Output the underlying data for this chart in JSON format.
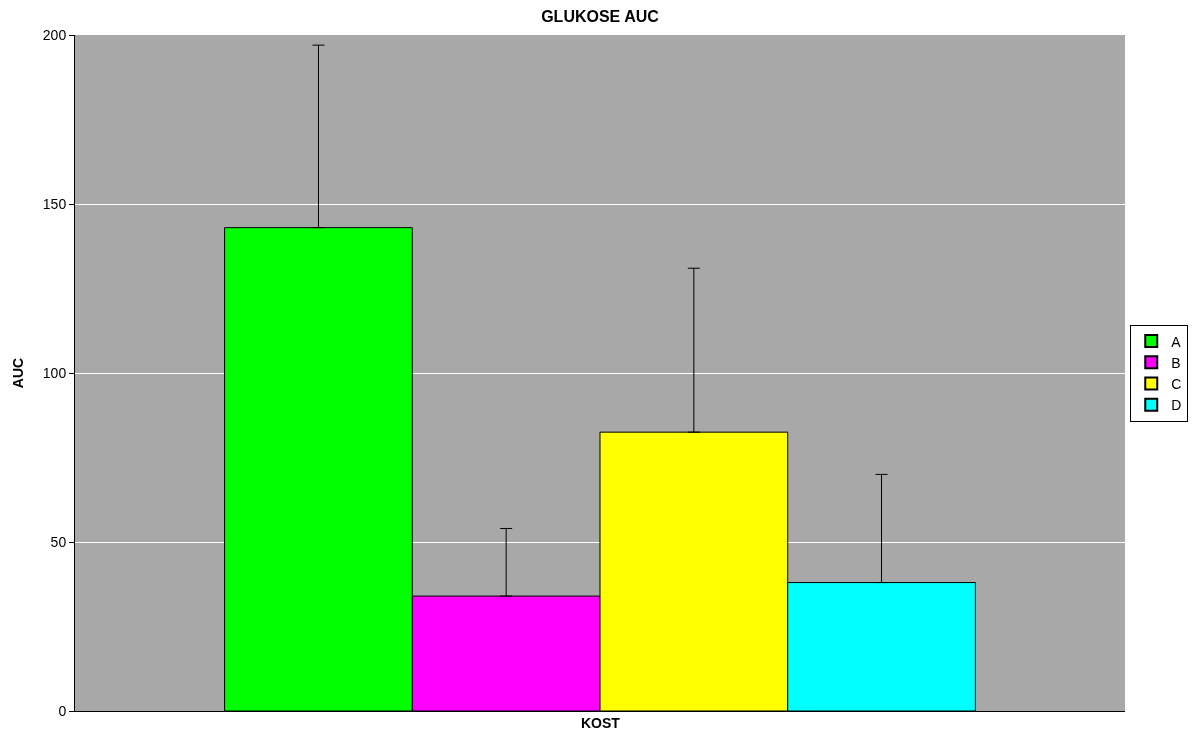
{
  "chart_data": {
    "type": "bar",
    "title": "GLUKOSE AUC",
    "ylabel": "AUC",
    "categories": [
      "KOST"
    ],
    "series": [
      {
        "name": "A",
        "color": "#00ff00",
        "values": [
          143
        ],
        "errors": [
          [
            143,
            197
          ]
        ]
      },
      {
        "name": "B",
        "color": "#ff00ff",
        "values": [
          34
        ],
        "errors": [
          [
            34,
            54
          ]
        ]
      },
      {
        "name": "C",
        "color": "#ffff00",
        "values": [
          82.5
        ],
        "errors": [
          [
            82.5,
            131
          ]
        ]
      },
      {
        "name": "D",
        "color": "#00ffff",
        "values": [
          38
        ],
        "errors": [
          [
            38,
            70
          ]
        ]
      }
    ],
    "ylim": [
      0,
      200
    ],
    "yticks": [
      0,
      50,
      100,
      150,
      200
    ],
    "grid": "y",
    "legend": "right"
  }
}
